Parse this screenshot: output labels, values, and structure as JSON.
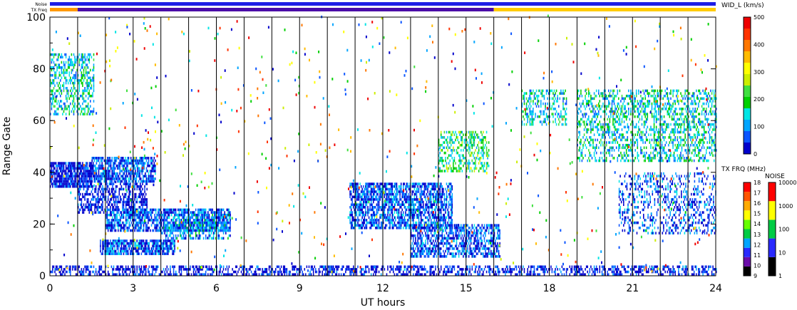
{
  "chart_data": {
    "type": "heatmap",
    "xlabel": "UT hours",
    "ylabel": "Range Gate",
    "xlim": [
      0,
      24
    ],
    "ylim": [
      0,
      100
    ],
    "x_ticks": [
      "0",
      "3",
      "6",
      "9",
      "12",
      "15",
      "18",
      "21",
      "24"
    ],
    "y_ticks": [
      "0",
      "20",
      "40",
      "60",
      "80",
      "100"
    ],
    "grid": "vertical lines every 1 hour",
    "top_bars": [
      {
        "label": "Noise",
        "segments": [
          {
            "start": 0,
            "end": 24,
            "color": "#1e1ee6"
          }
        ]
      },
      {
        "label": "TX Freq",
        "segments": [
          {
            "start": 0,
            "end": 1.0,
            "color": "#ff9900"
          },
          {
            "start": 1.0,
            "end": 16.0,
            "color": "#4a0ca8"
          },
          {
            "start": 16.0,
            "end": 24,
            "color": "#ffcc00"
          }
        ]
      }
    ],
    "colorbars": [
      {
        "title": "WID_L (km/s)",
        "min": 0,
        "max": 500,
        "ticks": [
          "0",
          "100",
          "200",
          "300",
          "400",
          "500"
        ],
        "colors": [
          "#0000cc",
          "#0a55ff",
          "#00a5ff",
          "#00e5e5",
          "#00d000",
          "#40e040",
          "#ccee00",
          "#ffff00",
          "#ffbb00",
          "#ff7700",
          "#ff3300",
          "#ee0000"
        ]
      },
      {
        "title": "TX FRQ (MHz)",
        "min": 9,
        "max": 18,
        "ticks": [
          "9",
          "10",
          "11",
          "12",
          "13",
          "14",
          "15",
          "16",
          "17",
          "18"
        ],
        "colors": [
          "#000000",
          "#6a0ca8",
          "#2a2aff",
          "#00a5ff",
          "#00cc44",
          "#66ff00",
          "#ffff00",
          "#ffaa00",
          "#ff5500",
          "#ff0000"
        ]
      },
      {
        "title": "NOISE",
        "min": 1,
        "max": 10000,
        "scale": "log",
        "ticks": [
          "1",
          "10",
          "100",
          "1000",
          "10000"
        ],
        "colors": [
          "#000000",
          "#2a2aff",
          "#00cc44",
          "#ffff00",
          "#ff0000"
        ]
      }
    ],
    "echo_regions": [
      {
        "x": [
          0.0,
          24.0
        ],
        "y": [
          0,
          4
        ],
        "color_class": 0,
        "density": 0.5
      },
      {
        "x": [
          0.0,
          1.5
        ],
        "y": [
          34,
          44
        ],
        "color_class": 0,
        "density": 0.85
      },
      {
        "x": [
          0.0,
          1.6
        ],
        "y": [
          62,
          86
        ],
        "color_class": 3,
        "density": 0.45
      },
      {
        "x": [
          1.0,
          3.5
        ],
        "y": [
          24,
          36
        ],
        "color_class": 0,
        "density": 0.55
      },
      {
        "x": [
          1.5,
          3.8
        ],
        "y": [
          36,
          46
        ],
        "color_class": 1,
        "density": 0.75
      },
      {
        "x": [
          1.8,
          4.5
        ],
        "y": [
          8,
          14
        ],
        "color_class": 1,
        "density": 0.8
      },
      {
        "x": [
          2.0,
          6.5
        ],
        "y": [
          17,
          26
        ],
        "color_class": 1,
        "density": 0.7
      },
      {
        "x": [
          4.0,
          6.5
        ],
        "y": [
          14,
          24
        ],
        "color_class": 2,
        "density": 0.45
      },
      {
        "x": [
          10.8,
          14.5
        ],
        "y": [
          18,
          36
        ],
        "color_class": 1,
        "density": 0.7
      },
      {
        "x": [
          13.0,
          16.2
        ],
        "y": [
          7,
          20
        ],
        "color_class": 1,
        "density": 0.6
      },
      {
        "x": [
          14.0,
          15.8
        ],
        "y": [
          40,
          56
        ],
        "color_class": 4,
        "density": 0.4
      },
      {
        "x": [
          17.0,
          18.6
        ],
        "y": [
          58,
          72
        ],
        "color_class": 3,
        "density": 0.35
      },
      {
        "x": [
          19.0,
          24.0
        ],
        "y": [
          44,
          72
        ],
        "color_class": 3,
        "density": 0.4
      },
      {
        "x": [
          20.5,
          24.0
        ],
        "y": [
          16,
          40
        ],
        "color_class": 1,
        "density": 0.3
      }
    ]
  }
}
